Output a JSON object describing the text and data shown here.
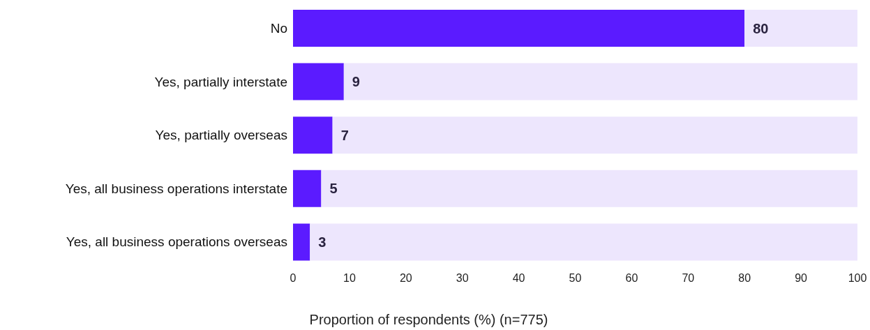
{
  "chart_data": {
    "type": "bar",
    "orientation": "horizontal",
    "stacked": true,
    "xlabel": "Proportion of respondents (%) (n=775)",
    "categories": [
      "No",
      "Yes, partially interstate",
      "Yes, partially overseas",
      "Yes, all business operations interstate",
      "Yes, all business operations overseas"
    ],
    "series": [
      {
        "color": "#5b1bff",
        "values": [
          80,
          9,
          7,
          5,
          3
        ],
        "value_labels": [
          "80",
          "9",
          "7",
          "5",
          "3"
        ]
      },
      {
        "color": "#ede6fd",
        "values": [
          20,
          91,
          93,
          95,
          97
        ]
      }
    ],
    "xlim": [
      0,
      100
    ],
    "xticks": [
      0,
      10,
      20,
      30,
      40,
      50,
      60,
      70,
      80,
      90,
      100
    ],
    "grid": false,
    "legend": false
  }
}
